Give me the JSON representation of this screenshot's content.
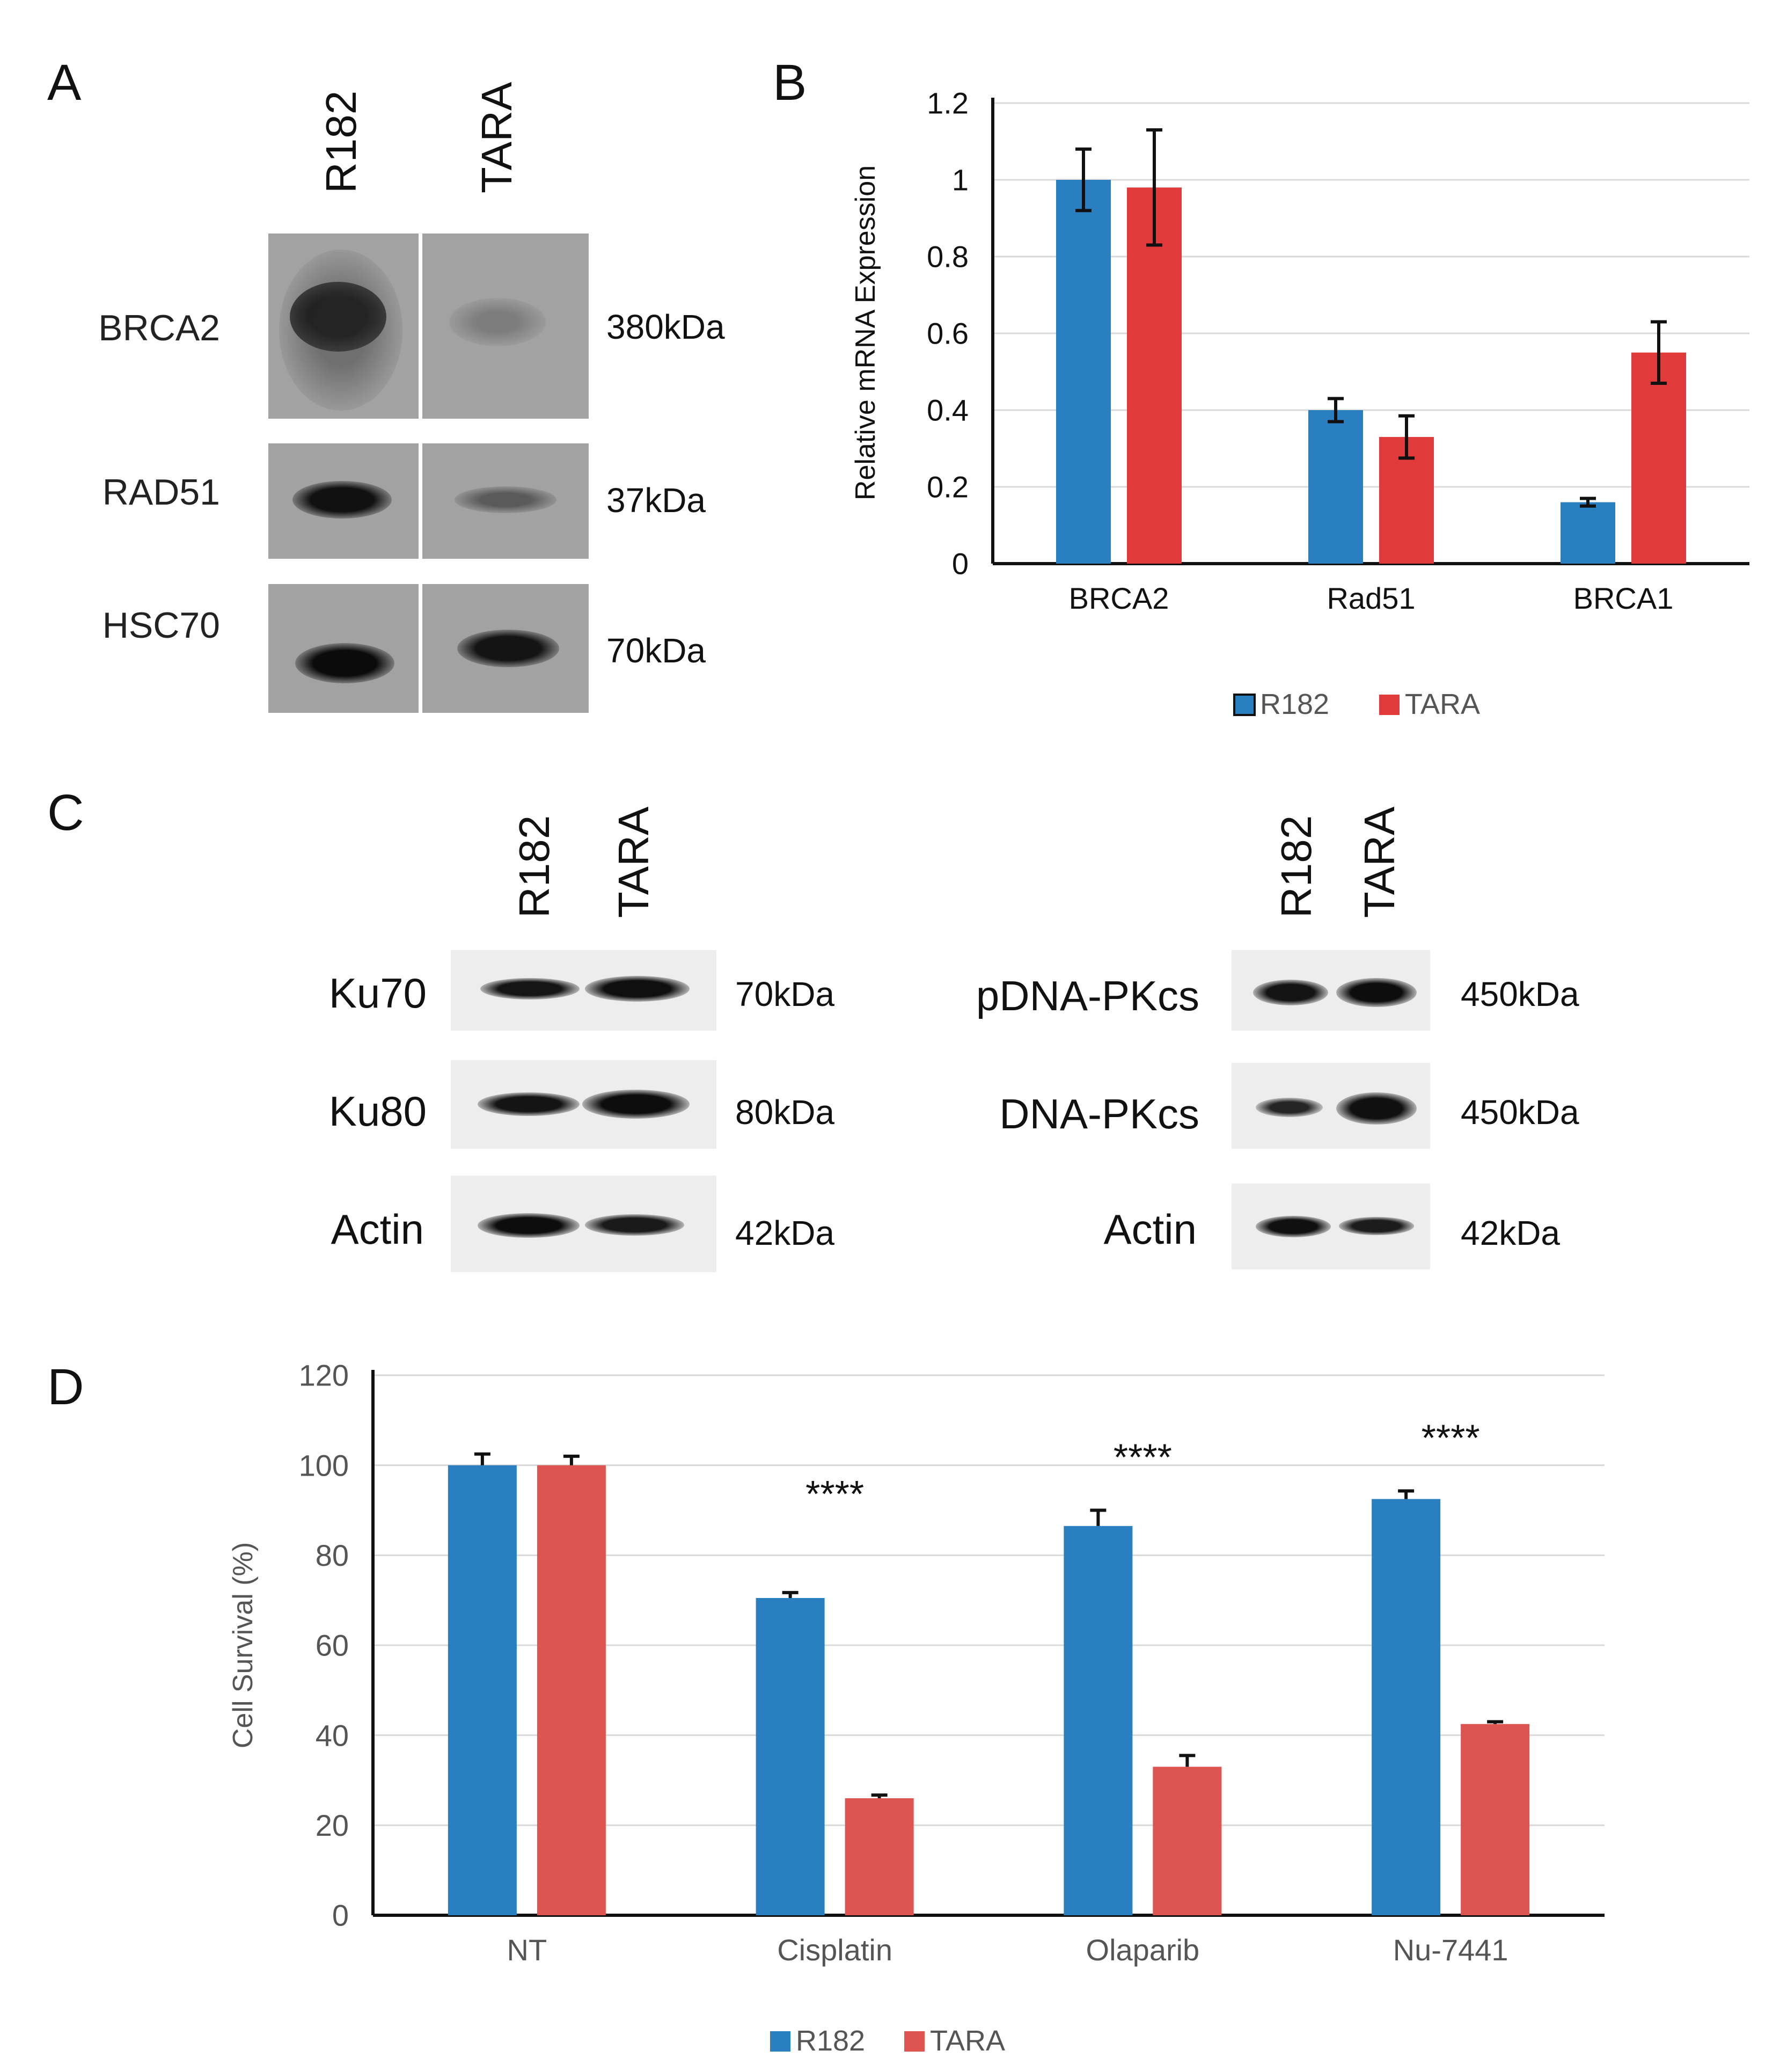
{
  "panels": {
    "a": "A",
    "b": "B",
    "c": "C",
    "d": "D"
  },
  "panel_a": {
    "lanes": [
      "R182",
      "TARA"
    ],
    "proteins": [
      {
        "name": "BRCA2",
        "kda": "380kDa"
      },
      {
        "name": "RAD51",
        "kda": "37kDa"
      },
      {
        "name": "HSC70",
        "kda": "70kDa"
      }
    ]
  },
  "panel_c_left": {
    "lanes": [
      "R182",
      "TARA"
    ],
    "proteins": [
      {
        "name": "Ku70",
        "kda": "70kDa"
      },
      {
        "name": "Ku80",
        "kda": "80kDa"
      },
      {
        "name": "Actin",
        "kda": "42kDa"
      }
    ]
  },
  "panel_c_right": {
    "lanes": [
      "R182",
      "TARA"
    ],
    "proteins": [
      {
        "name": "pDNA-PKcs",
        "kda": "450kDa"
      },
      {
        "name": "DNA-PKcs",
        "kda": "450kDa"
      },
      {
        "name": "Actin",
        "kda": "42kDa"
      }
    ]
  },
  "colors": {
    "r182": "#2a7fc1",
    "tara_b": "#e03a3a",
    "tara_d": "#dd5450",
    "grid": "#d9d9d9"
  },
  "chart_data": [
    {
      "type": "bar",
      "panel": "B",
      "categories": [
        "BRCA2",
        "Rad51",
        "BRCA1"
      ],
      "series": [
        {
          "name": "R182",
          "values": [
            1.0,
            0.4,
            0.16
          ],
          "errors": [
            0.08,
            0.03,
            0.01
          ]
        },
        {
          "name": "TARA",
          "values": [
            0.98,
            0.33,
            0.55
          ],
          "errors": [
            0.15,
            0.055,
            0.08
          ]
        }
      ],
      "ylabel": "Relative mRNA Expression",
      "ylim": [
        0,
        1.2
      ],
      "yticks": [
        "0",
        "0.2",
        "0.4",
        "0.6",
        "0.8",
        "1",
        "1.2"
      ],
      "grid": true,
      "legend": "bottom"
    },
    {
      "type": "bar",
      "panel": "D",
      "categories": [
        "NT",
        "Cisplatin",
        "Olaparib",
        "Nu-7441"
      ],
      "series": [
        {
          "name": "R182",
          "values": [
            100,
            70.5,
            86.5,
            92.5
          ],
          "errors": [
            2.5,
            1.2,
            3.5,
            1.8
          ]
        },
        {
          "name": "TARA",
          "values": [
            100,
            26,
            33,
            42.5
          ],
          "errors": [
            2.0,
            0.7,
            2.5,
            0.5
          ]
        }
      ],
      "annotations": [
        "",
        "****",
        "****",
        "****"
      ],
      "ylabel": "Cell Survival (%)",
      "ylim": [
        0,
        120
      ],
      "yticks": [
        "0",
        "20",
        "40",
        "60",
        "80",
        "100",
        "120"
      ],
      "grid": true,
      "legend": "bottom"
    }
  ]
}
